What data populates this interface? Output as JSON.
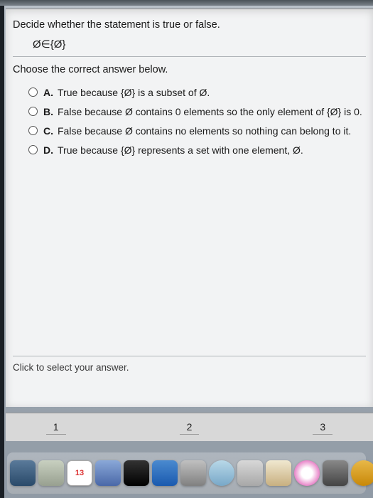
{
  "question": {
    "prompt": "Decide whether the statement is true or false.",
    "statement": "Ø∈{Ø}",
    "choose_label": "Choose the correct answer below.",
    "options": [
      {
        "letter": "A.",
        "text": "True because {Ø} is a subset of Ø."
      },
      {
        "letter": "B.",
        "text": "False because Ø contains 0 elements so the only element of {Ø} is 0."
      },
      {
        "letter": "C.",
        "text": "False because Ø contains no elements so nothing can belong to it."
      },
      {
        "letter": "D.",
        "text": "True because {Ø} represents a set with one element, Ø."
      }
    ],
    "hint": "Click to select your answer."
  },
  "pagination": {
    "pages": [
      "1",
      "2",
      "3"
    ]
  },
  "dock": {
    "icons": [
      "finder",
      "launchpad",
      "calendar",
      "mail",
      "terminal",
      "safari",
      "settings",
      "messages",
      "preview",
      "notes",
      "itunes",
      "appstore",
      "system",
      "help",
      "folder",
      "chrome",
      "trash"
    ]
  },
  "colors": {
    "panel_bg": "#f2f3f4",
    "text": "#1a1a1a",
    "divider": "#b0b4b8"
  }
}
